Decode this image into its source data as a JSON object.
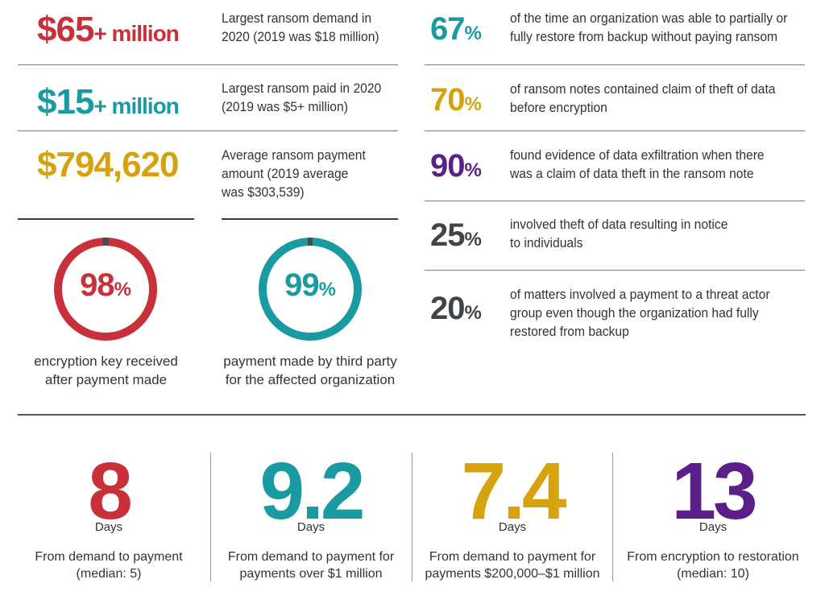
{
  "colors": {
    "red": "#c8313a",
    "teal": "#1a9ba1",
    "gold": "#d6a30f",
    "purple": "#5b1f8a",
    "gray": "#3f4448"
  },
  "left_stats": [
    {
      "value": "$65",
      "suffix": "+ million",
      "desc": [
        "Largest ransom demand in",
        "2020 (2019 was $18 million)"
      ]
    },
    {
      "value": "$15",
      "suffix": "+ million",
      "desc": [
        "Largest ransom paid in 2020",
        "(2019 was $5+ million)"
      ]
    },
    {
      "value": "$794,620",
      "suffix": "",
      "desc": [
        "Average ransom payment",
        "amount (2019 average",
        "was $303,539)"
      ]
    }
  ],
  "rings": [
    {
      "value": "98",
      "sign": "%",
      "percent": 98,
      "caption": [
        "encryption key received",
        "after payment made"
      ]
    },
    {
      "value": "99",
      "sign": "%",
      "percent": 99,
      "caption": [
        "payment made by third party",
        "for the affected organization"
      ]
    }
  ],
  "right_stats": [
    {
      "value": "67",
      "sign": "%",
      "desc": [
        "of the time an organization was able to partially or",
        "fully restore from backup without paying ransom"
      ]
    },
    {
      "value": "70",
      "sign": "%",
      "desc": [
        "of ransom notes contained claim of theft of data",
        "before encryption"
      ]
    },
    {
      "value": "90",
      "sign": "%",
      "desc": [
        "found evidence of data exfiltration when there",
        "was a claim of data theft in the ransom note"
      ]
    },
    {
      "value": "25",
      "sign": "%",
      "desc": [
        "involved theft of data resulting in notice",
        "to individuals"
      ]
    },
    {
      "value": "20",
      "sign": "%",
      "desc": [
        "of matters involved a payment to a threat actor",
        "group even though the organization had fully",
        "restored from backup"
      ]
    }
  ],
  "days": [
    {
      "value": "8",
      "unit": "Days",
      "desc": [
        "From demand to payment",
        "(median: 5)"
      ]
    },
    {
      "value": "9.2",
      "unit": "Days",
      "desc": [
        "From demand to payment for",
        "payments over $1 million"
      ]
    },
    {
      "value": "7.4",
      "unit": "Days",
      "desc": [
        "From demand to payment for",
        "payments $200,000–$1 million"
      ]
    },
    {
      "value": "13",
      "unit": "Days",
      "desc": [
        "From encryption to restoration",
        "(median: 10)"
      ]
    }
  ]
}
